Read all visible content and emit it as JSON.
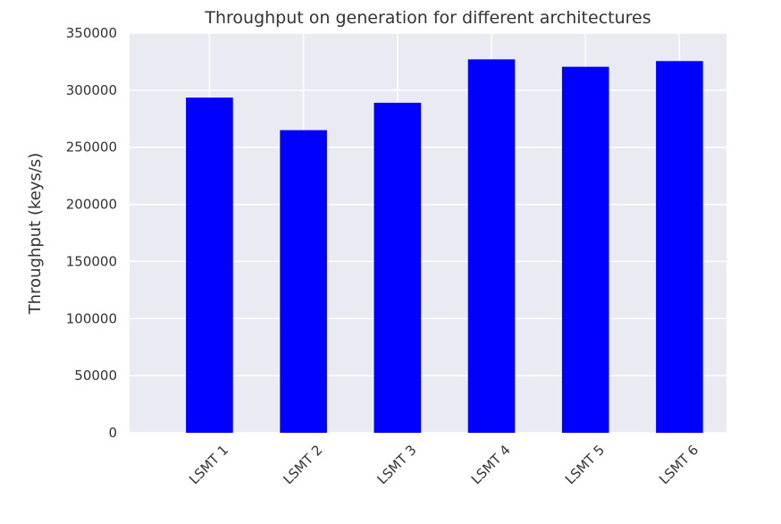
{
  "chart_data": {
    "type": "bar",
    "title": "Throughput on generation for different architectures",
    "xlabel": "",
    "ylabel": "Throughput (keys/s)",
    "categories": [
      "LSMT 1",
      "LSMT 2",
      "LSMT 3",
      "LSMT 4",
      "LSMT 5",
      "LSMT 6"
    ],
    "values": [
      293500,
      265000,
      289000,
      327000,
      320500,
      325500
    ],
    "ylim": [
      0,
      350000
    ],
    "yticks": [
      "0",
      "50000",
      "100000",
      "150000",
      "200000",
      "250000",
      "300000",
      "350000"
    ],
    "grid": true,
    "bar_color": "#0000ff",
    "background_color": "#eaeaf2",
    "grid_color": "#ffffff"
  }
}
